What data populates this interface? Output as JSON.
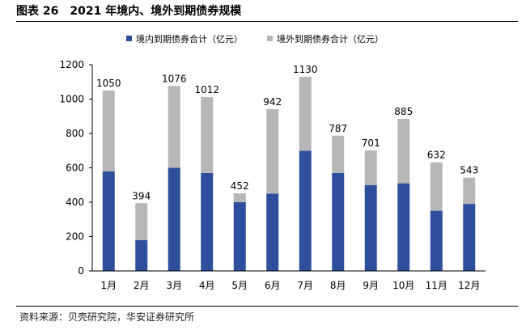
{
  "header": {
    "figure_label": "图表 26",
    "title": "2021 年境内、境外到期债券规模"
  },
  "source": "资料来源：贝壳研究院，华安证券研究所",
  "colors": {
    "domestic": "#2e4f9b",
    "overseas": "#b7b7b7",
    "axis": "#000000"
  },
  "chart_data": {
    "type": "bar",
    "stacked": true,
    "title": "2021 年境内、境外到期债券规模",
    "xlabel": "",
    "ylabel": "",
    "categories": [
      "1月",
      "2月",
      "3月",
      "4月",
      "5月",
      "6月",
      "7月",
      "8月",
      "9月",
      "10月",
      "11月",
      "12月"
    ],
    "series": [
      {
        "name": "境内到期债券合计（亿元）",
        "color": "#2e4f9b",
        "values": [
          580,
          180,
          600,
          570,
          400,
          450,
          700,
          570,
          500,
          510,
          350,
          390
        ]
      },
      {
        "name": "境外到期债券合计（亿元）",
        "color": "#b7b7b7",
        "values": [
          470,
          214,
          476,
          442,
          52,
          492,
          430,
          217,
          201,
          375,
          282,
          153
        ]
      }
    ],
    "totals": [
      1050,
      394,
      1076,
      1012,
      452,
      942,
      1130,
      787,
      701,
      885,
      632,
      543
    ],
    "ylim": [
      0,
      1200
    ],
    "yticks": [
      0,
      200,
      400,
      600,
      800,
      1000,
      1200
    ],
    "legend": "top",
    "grid": false
  }
}
